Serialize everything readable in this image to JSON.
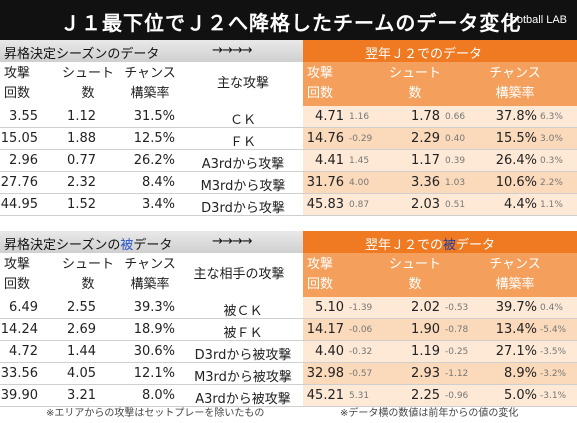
{
  "title": "Ｊ１最下位でＪ２へ降格したチームのデータ変化",
  "brand": "Football LAB",
  "arrows": "→→→→",
  "top": {
    "left_label": "昇格決定シーズンのデータ",
    "right_label": "翌年Ｊ２でのデータ",
    "headers": {
      "attack1": "攻撃",
      "attack2": "回数",
      "shoot1": "シュート",
      "shoot2": "数",
      "chance1": "チャンス",
      "chance2": "構築率",
      "kind": "主な攻撃",
      "r_attack1": "攻撃",
      "r_attack2": "回数",
      "r_shoot1": "シュート",
      "r_shoot2": "数",
      "r_chance1": "チャンス",
      "r_chance2": "構築率"
    },
    "rows": [
      {
        "a": "3.55",
        "s": "1.12",
        "c": "31.5%",
        "kind": "ＣＫ",
        "ra": "4.71",
        "ra_d": "1.16",
        "rs": "1.78",
        "rs_d": "0.66",
        "rc": "37.8%",
        "rc_d": "6.3%"
      },
      {
        "a": "15.05",
        "s": "1.88",
        "c": "12.5%",
        "kind": "ＦＫ",
        "ra": "14.76",
        "ra_d": "-0.29",
        "rs": "2.29",
        "rs_d": "0.40",
        "rc": "15.5%",
        "rc_d": "3.0%"
      },
      {
        "a": "2.96",
        "s": "0.77",
        "c": "26.2%",
        "kind": "A3rdから攻撃",
        "ra": "4.41",
        "ra_d": "1.45",
        "rs": "1.17",
        "rs_d": "0.39",
        "rc": "26.4%",
        "rc_d": "0.3%"
      },
      {
        "a": "27.76",
        "s": "2.32",
        "c": "8.4%",
        "kind": "M3rdから攻撃",
        "ra": "31.76",
        "ra_d": "4.00",
        "rs": "3.36",
        "rs_d": "1.03",
        "rc": "10.6%",
        "rc_d": "2.2%"
      },
      {
        "a": "44.95",
        "s": "1.52",
        "c": "3.4%",
        "kind": "D3rdから攻撃",
        "ra": "45.83",
        "ra_d": "0.87",
        "rs": "2.03",
        "rs_d": "0.51",
        "rc": "4.4%",
        "rc_d": "1.1%"
      }
    ]
  },
  "bottom": {
    "left_label_a": "昇格決定シーズンの",
    "left_label_hl": "被",
    "left_label_b": "データ",
    "right_label_a": "翌年Ｊ２での",
    "right_label_hl": "被",
    "right_label_b": "データ",
    "headers": {
      "attack1": "攻撃",
      "attack2": "回数",
      "shoot1": "シュート",
      "shoot2": "数",
      "chance1": "チャンス",
      "chance2": "構築率",
      "kind": "主な相手の攻撃",
      "r_attack1": "攻撃",
      "r_attack2": "回数",
      "r_shoot1": "シュート",
      "r_shoot2": "数",
      "r_chance1": "チャンス",
      "r_chance2": "構築率"
    },
    "rows": [
      {
        "a": "6.49",
        "s": "2.55",
        "c": "39.3%",
        "kind": "被ＣＫ",
        "ra": "5.10",
        "ra_d": "-1.39",
        "rs": "2.02",
        "rs_d": "-0.53",
        "rc": "39.7%",
        "rc_d": "0.4%"
      },
      {
        "a": "14.24",
        "s": "2.69",
        "c": "18.9%",
        "kind": "被ＦＫ",
        "ra": "14.17",
        "ra_d": "-0.06",
        "rs": "1.90",
        "rs_d": "-0.78",
        "rc": "13.4%",
        "rc_d": "-5.4%"
      },
      {
        "a": "4.72",
        "s": "1.44",
        "c": "30.6%",
        "kind": "D3rdから被攻撃",
        "ra": "4.40",
        "ra_d": "-0.32",
        "rs": "1.19",
        "rs_d": "-0.25",
        "rc": "27.1%",
        "rc_d": "-3.5%"
      },
      {
        "a": "33.56",
        "s": "4.05",
        "c": "12.1%",
        "kind": "M3rdから被攻撃",
        "ra": "32.98",
        "ra_d": "-0.57",
        "rs": "2.93",
        "rs_d": "-1.12",
        "rc": "8.9%",
        "rc_d": "-3.2%"
      },
      {
        "a": "39.90",
        "s": "3.21",
        "c": "8.0%",
        "kind": "A3rdから被攻撃",
        "ra": "45.21",
        "ra_d": "5.31",
        "rs": "2.25",
        "rs_d": "-0.96",
        "rc": "5.0%",
        "rc_d": "-3.1%"
      }
    ]
  },
  "footnote_left": "※エリアからの攻撃はセットプレーを除いたもの",
  "footnote_right": "※データ横の数値は前年からの値の変化",
  "colors": {
    "orange": "#f07a22",
    "orange_light": "#f4a05c",
    "highlight_blue": "#2a55c8"
  }
}
